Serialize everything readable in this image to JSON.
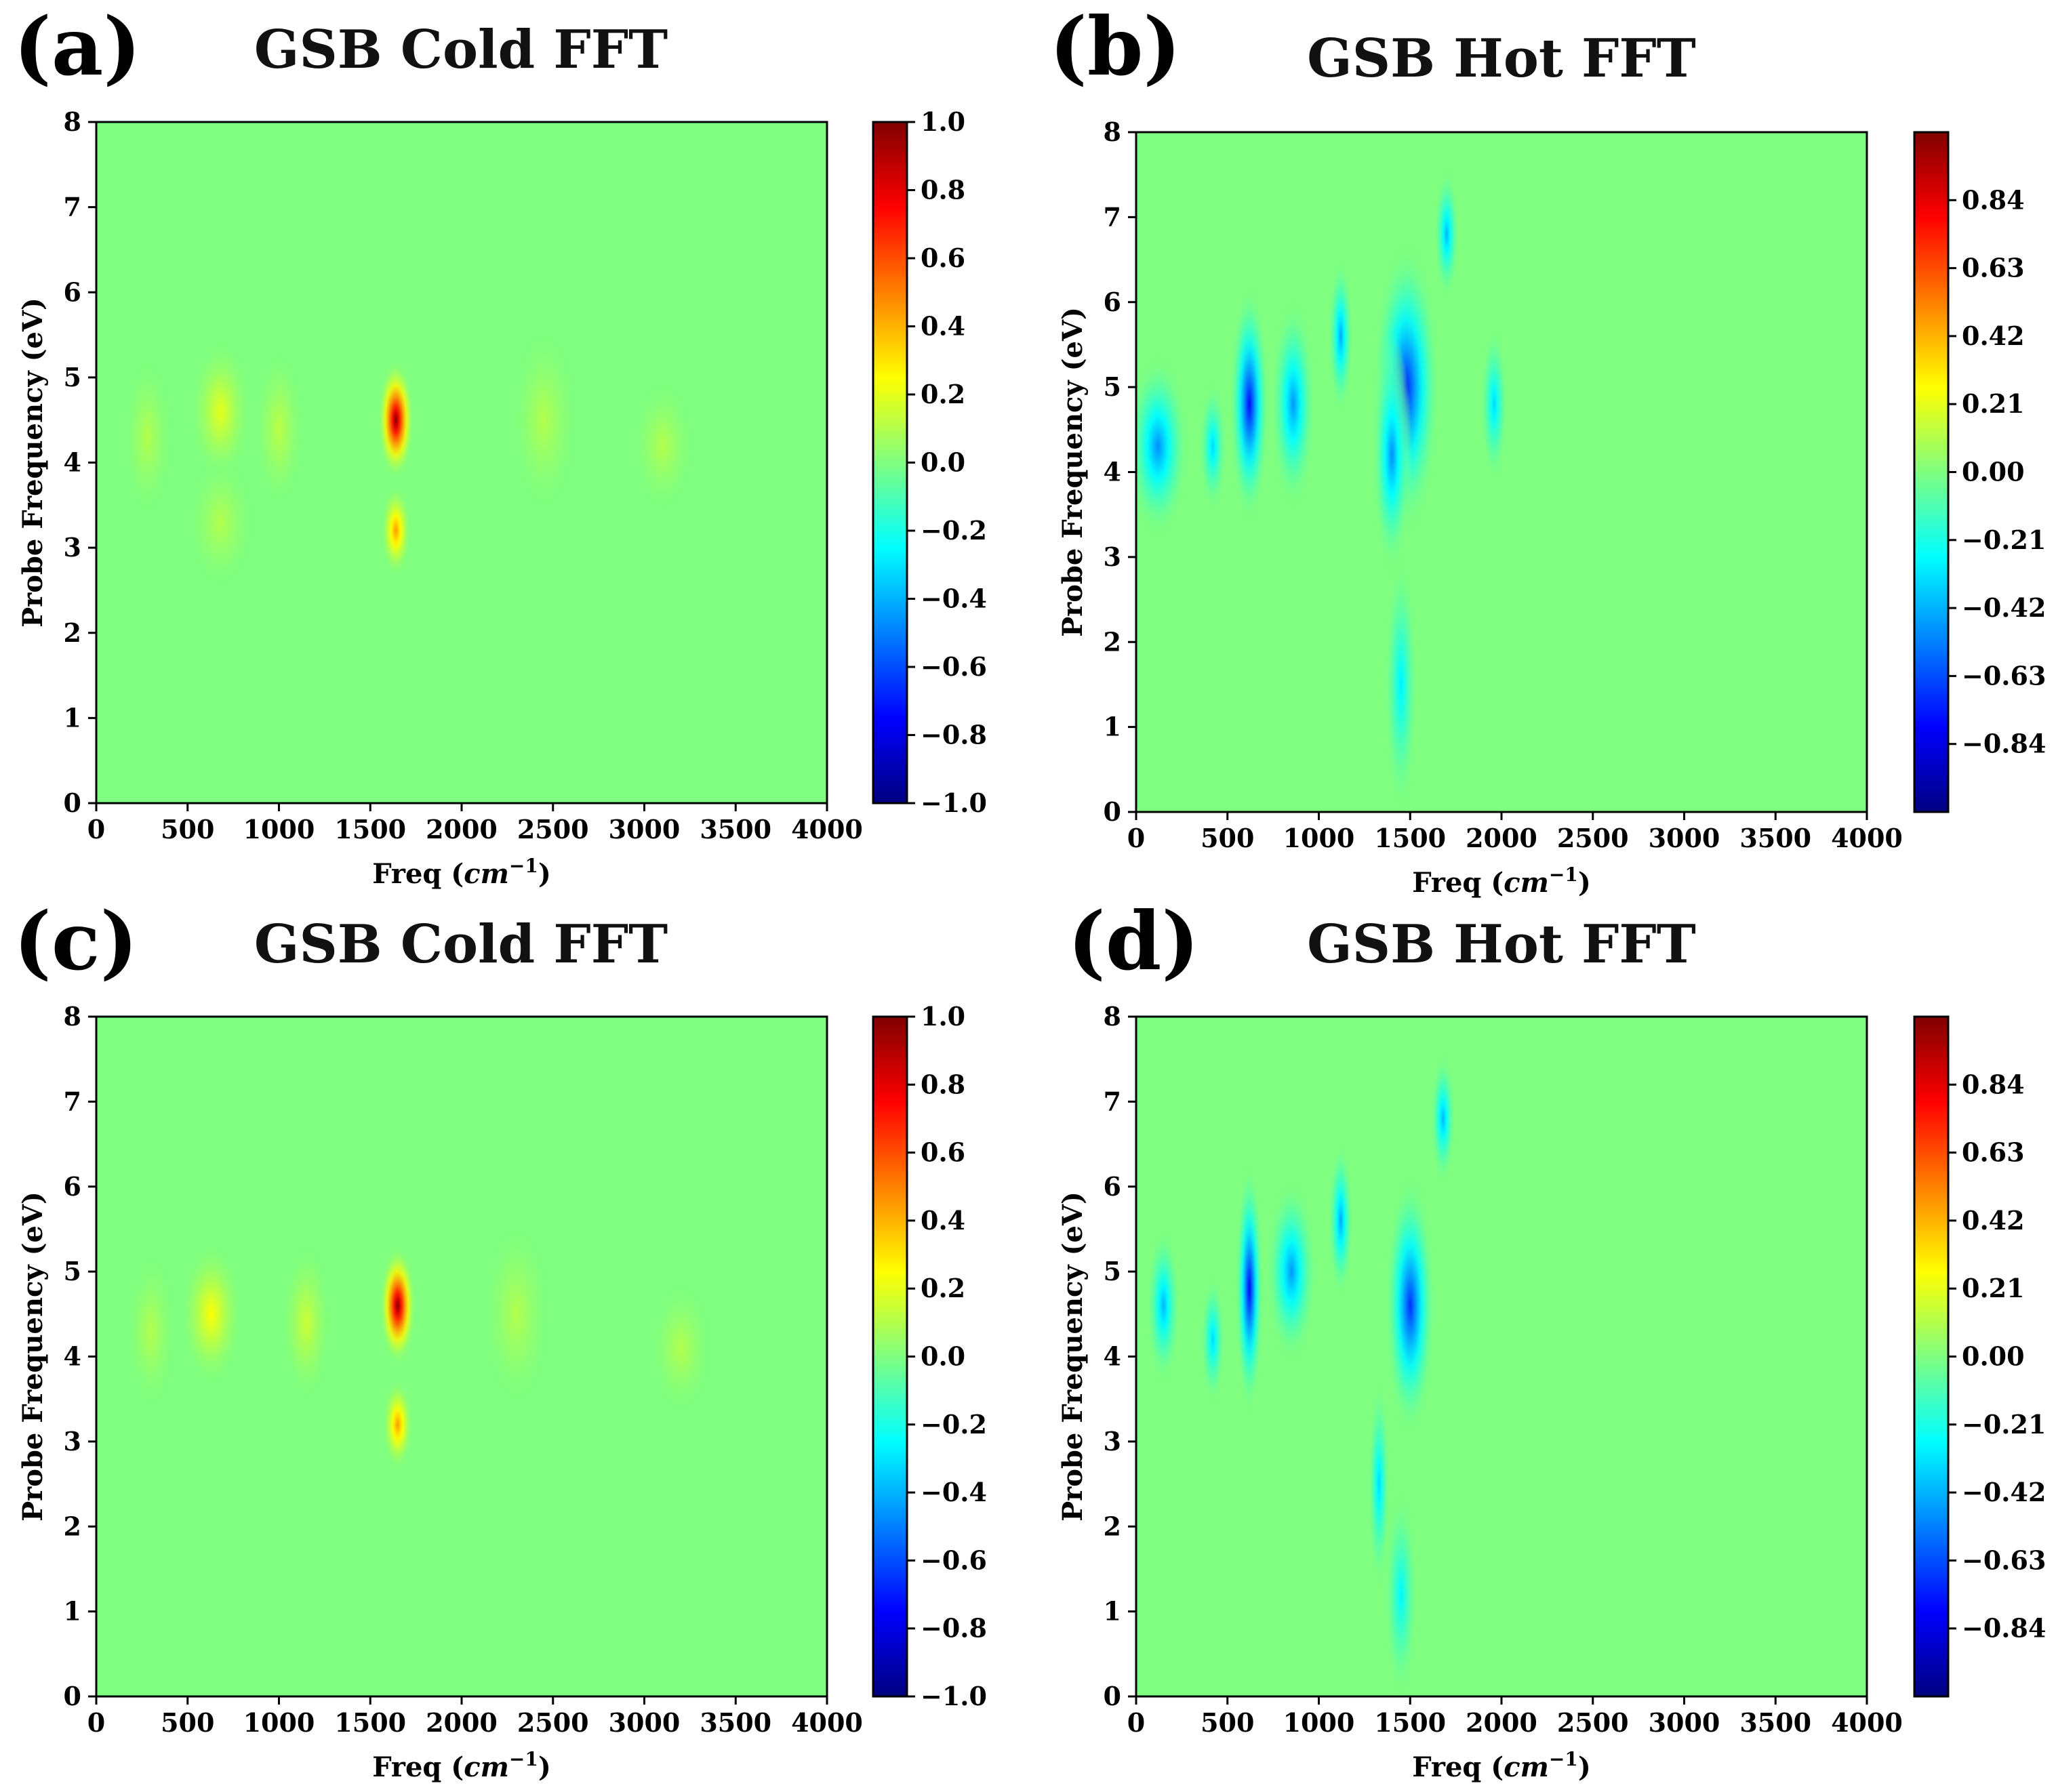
{
  "colors": {
    "background": "#ffffff",
    "field_zero": "#80ff80",
    "colormap": "jet"
  },
  "xlabel_prefix": "Freq (",
  "xlabel_unit": "cm",
  "xlabel_exp": "−1",
  "xlabel_suffix": ")",
  "chart_data": [
    {
      "panel": "(a)",
      "title": "GSB Cold FFT",
      "type": "heatmap",
      "colormap": "jet",
      "ylabel": "Probe Frequency (eV)",
      "xlim": [
        0,
        4000
      ],
      "ylim": [
        0,
        8
      ],
      "xticks": [
        "0",
        "500",
        "1000",
        "1500",
        "2000",
        "2500",
        "3000",
        "3500",
        "4000"
      ],
      "yticks": [
        "0",
        "1",
        "2",
        "3",
        "4",
        "5",
        "6",
        "7",
        "8"
      ],
      "colorbar": {
        "range": [
          -1.0,
          1.0
        ],
        "ticks": [
          -1.0,
          -0.8,
          -0.6,
          -0.4,
          -0.2,
          0.0,
          0.2,
          0.4,
          0.6,
          0.8,
          1.0
        ],
        "labels": [
          "−1.0",
          "−0.8",
          "−0.6",
          "−0.4",
          "−0.2",
          "0.0",
          "0.2",
          "0.4",
          "0.6",
          "0.8",
          "1.0"
        ]
      },
      "features": [
        {
          "x": 1640,
          "y": 4.5,
          "value": 1.0,
          "width": 65,
          "height": 0.45
        },
        {
          "x": 1640,
          "y": 3.2,
          "value": 0.45,
          "width": 55,
          "height": 0.35
        },
        {
          "x": 680,
          "y": 4.6,
          "value": 0.2,
          "width": 110,
          "height": 0.55
        },
        {
          "x": 1000,
          "y": 4.4,
          "value": 0.12,
          "width": 90,
          "height": 0.6
        },
        {
          "x": 280,
          "y": 4.3,
          "value": 0.1,
          "width": 90,
          "height": 0.6
        },
        {
          "x": 2450,
          "y": 4.5,
          "value": 0.1,
          "width": 120,
          "height": 0.7
        },
        {
          "x": 3100,
          "y": 4.2,
          "value": 0.1,
          "width": 110,
          "height": 0.5
        },
        {
          "x": 680,
          "y": 3.3,
          "value": 0.1,
          "width": 120,
          "height": 0.5
        }
      ]
    },
    {
      "panel": "(b)",
      "title": "GSB Hot FFT",
      "type": "heatmap",
      "colormap": "jet",
      "ylabel": "Probe Frequency (eV)",
      "xlim": [
        0,
        4000
      ],
      "ylim": [
        0,
        8
      ],
      "xticks": [
        "0",
        "500",
        "1000",
        "1500",
        "2000",
        "2500",
        "3000",
        "3500",
        "4000"
      ],
      "yticks": [
        "0",
        "1",
        "2",
        "3",
        "4",
        "5",
        "6",
        "7",
        "8"
      ],
      "colorbar": {
        "range": [
          -1.05,
          1.05
        ],
        "ticks": [
          -0.84,
          -0.63,
          -0.42,
          -0.21,
          0.0,
          0.21,
          0.42,
          0.63,
          0.84
        ],
        "labels": [
          "−0.84",
          "−0.63",
          "−0.42",
          "−0.21",
          "0.00",
          "0.21",
          "0.42",
          "0.63",
          "0.84"
        ]
      },
      "features": [
        {
          "x": 620,
          "y": 4.8,
          "value": -0.78,
          "width": 70,
          "height": 0.9
        },
        {
          "x": 1480,
          "y": 5.0,
          "value": -0.72,
          "width": 120,
          "height": 1.1
        },
        {
          "x": 1400,
          "y": 4.2,
          "value": -0.5,
          "width": 70,
          "height": 0.9
        },
        {
          "x": 120,
          "y": 4.3,
          "value": -0.5,
          "width": 110,
          "height": 0.7
        },
        {
          "x": 860,
          "y": 4.8,
          "value": -0.48,
          "width": 80,
          "height": 0.8
        },
        {
          "x": 1120,
          "y": 5.6,
          "value": -0.45,
          "width": 45,
          "height": 0.6
        },
        {
          "x": 1700,
          "y": 6.8,
          "value": -0.42,
          "width": 45,
          "height": 0.5
        },
        {
          "x": 420,
          "y": 4.3,
          "value": -0.35,
          "width": 50,
          "height": 0.5
        },
        {
          "x": 1960,
          "y": 4.8,
          "value": -0.35,
          "width": 50,
          "height": 0.6
        },
        {
          "x": 1450,
          "y": 1.5,
          "value": -0.3,
          "width": 60,
          "height": 1.0
        }
      ]
    },
    {
      "panel": "(c)",
      "title": "GSB Cold FFT",
      "type": "heatmap",
      "colormap": "jet",
      "ylabel": "Probe Frequency (eV)",
      "xlim": [
        0,
        4000
      ],
      "ylim": [
        0,
        8
      ],
      "xticks": [
        "0",
        "500",
        "1000",
        "1500",
        "2000",
        "2500",
        "3000",
        "3500",
        "4000"
      ],
      "yticks": [
        "0",
        "1",
        "2",
        "3",
        "4",
        "5",
        "6",
        "7",
        "8"
      ],
      "colorbar": {
        "range": [
          -1.0,
          1.0
        ],
        "ticks": [
          -1.0,
          -0.8,
          -0.6,
          -0.4,
          -0.2,
          0.0,
          0.2,
          0.4,
          0.6,
          0.8,
          1.0
        ],
        "labels": [
          "−1.0",
          "−0.8",
          "−0.6",
          "−0.4",
          "−0.2",
          "0.0",
          "0.2",
          "0.4",
          "0.6",
          "0.8",
          "1.0"
        ]
      },
      "features": [
        {
          "x": 1650,
          "y": 4.6,
          "value": 1.0,
          "width": 65,
          "height": 0.45
        },
        {
          "x": 1650,
          "y": 3.2,
          "value": 0.45,
          "width": 55,
          "height": 0.35
        },
        {
          "x": 630,
          "y": 4.5,
          "value": 0.25,
          "width": 110,
          "height": 0.55
        },
        {
          "x": 1150,
          "y": 4.4,
          "value": 0.15,
          "width": 90,
          "height": 0.6
        },
        {
          "x": 300,
          "y": 4.3,
          "value": 0.1,
          "width": 90,
          "height": 0.6
        },
        {
          "x": 2300,
          "y": 4.5,
          "value": 0.1,
          "width": 120,
          "height": 0.7
        },
        {
          "x": 3200,
          "y": 4.1,
          "value": 0.1,
          "width": 110,
          "height": 0.5
        }
      ]
    },
    {
      "panel": "(d)",
      "title": "GSB Hot FFT",
      "type": "heatmap",
      "colormap": "jet",
      "ylabel": "Probe Frequency (eV)",
      "xlim": [
        0,
        4000
      ],
      "ylim": [
        0,
        8
      ],
      "xticks": [
        "0",
        "500",
        "1000",
        "1500",
        "2000",
        "2500",
        "3000",
        "3500",
        "4000"
      ],
      "yticks": [
        "0",
        "1",
        "2",
        "3",
        "4",
        "5",
        "6",
        "7",
        "8"
      ],
      "colorbar": {
        "range": [
          -1.05,
          1.05
        ],
        "ticks": [
          -0.84,
          -0.63,
          -0.42,
          -0.21,
          0.0,
          0.21,
          0.42,
          0.63,
          0.84
        ],
        "labels": [
          "−0.84",
          "−0.63",
          "−0.42",
          "−0.21",
          "0.00",
          "0.21",
          "0.42",
          "0.63",
          "0.84"
        ]
      },
      "features": [
        {
          "x": 620,
          "y": 4.8,
          "value": -0.8,
          "width": 50,
          "height": 0.95
        },
        {
          "x": 1500,
          "y": 4.6,
          "value": -0.7,
          "width": 90,
          "height": 1.0
        },
        {
          "x": 850,
          "y": 5.0,
          "value": -0.48,
          "width": 90,
          "height": 0.7
        },
        {
          "x": 1120,
          "y": 5.6,
          "value": -0.45,
          "width": 45,
          "height": 0.6
        },
        {
          "x": 1680,
          "y": 6.8,
          "value": -0.42,
          "width": 45,
          "height": 0.5
        },
        {
          "x": 150,
          "y": 4.6,
          "value": -0.42,
          "width": 60,
          "height": 0.6
        },
        {
          "x": 420,
          "y": 4.2,
          "value": -0.35,
          "width": 45,
          "height": 0.5
        },
        {
          "x": 1330,
          "y": 2.5,
          "value": -0.35,
          "width": 40,
          "height": 0.8
        },
        {
          "x": 1450,
          "y": 1.2,
          "value": -0.28,
          "width": 60,
          "height": 0.8
        }
      ]
    }
  ]
}
